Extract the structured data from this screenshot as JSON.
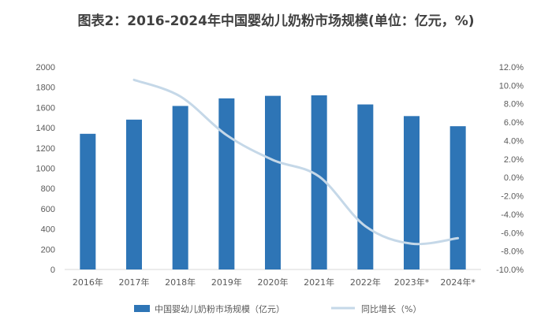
{
  "chart_data": {
    "type": "bar",
    "title": "图表2：2016-2024年中国婴幼儿奶粉市场规模(单位：亿元，%)",
    "categories": [
      "2016年",
      "2017年",
      "2018年",
      "2019年",
      "2020年",
      "2021年",
      "2022年",
      "2023年*",
      "2024年*"
    ],
    "series": [
      {
        "name": "中国婴幼儿奶粉市场规模（亿元）",
        "type": "bar",
        "axis": "left",
        "color": "#2e75b6",
        "values": [
          1340,
          1480,
          1615,
          1690,
          1715,
          1720,
          1630,
          1515,
          1415
        ]
      },
      {
        "name": "同比增长（%）",
        "type": "line",
        "axis": "right",
        "color": "#c5d8e8",
        "values": [
          null,
          10.6,
          8.8,
          4.6,
          1.9,
          0.1,
          -5.3,
          -7.2,
          -6.6
        ]
      }
    ],
    "y_left": {
      "min": 0,
      "max": 2000,
      "step": 200,
      "tick_labels": [
        "0",
        "200",
        "400",
        "600",
        "800",
        "1000",
        "1200",
        "1400",
        "1600",
        "1800",
        "2000"
      ]
    },
    "y_right": {
      "min": -10,
      "max": 12,
      "step": 2,
      "tick_labels": [
        "-10.0%",
        "-8.0%",
        "-6.0%",
        "-4.0%",
        "-2.0%",
        "0.0%",
        "2.0%",
        "4.0%",
        "6.0%",
        "8.0%",
        "10.0%",
        "12.0%"
      ]
    },
    "grid": false,
    "legend_position": "bottom"
  }
}
